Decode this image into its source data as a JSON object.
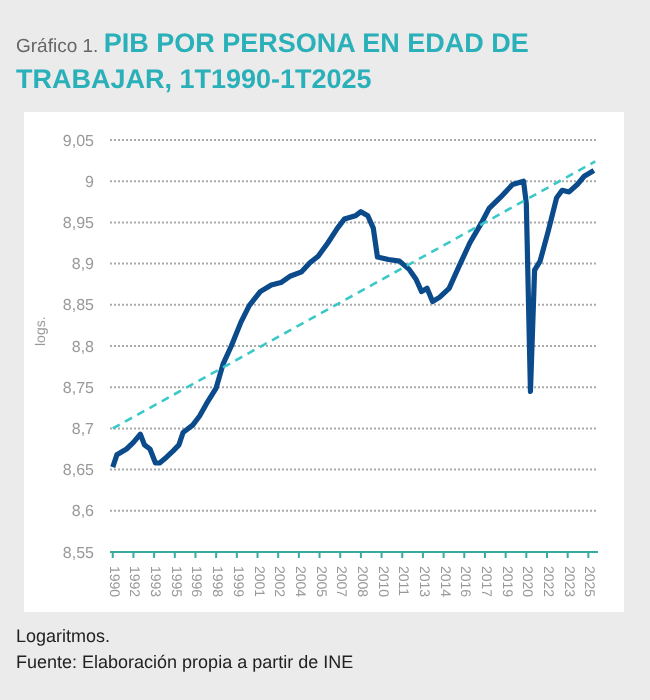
{
  "chart_data": {
    "type": "line",
    "subtitle": "Gráfico 1.",
    "title": "PIB POR PERSONA EN EDAD DE TRABAJAR, 1T1990-1T2025",
    "ylabel": "logs.",
    "annotations": [
      "Logaritmos.",
      "Fuente: Elaboración propia a partir de INE"
    ],
    "series": [
      {
        "color": "#0b4a8b",
        "line_style": "solid",
        "x": [
          1990.0,
          1990.3,
          1991.0,
          1991.5,
          1992.0,
          1992.3,
          1992.7,
          1993.1,
          1993.4,
          1993.9,
          1994.4,
          1994.8,
          1995.1,
          1995.8,
          1996.3,
          1996.8,
          1997.5,
          1998.0,
          1998.6,
          1999.3,
          1999.9,
          2000.7,
          2001.5,
          2002.2,
          2002.9,
          2003.7,
          2004.3,
          2004.9,
          2005.6,
          2006.3,
          2006.8,
          2007.6,
          2008.0,
          2008.5,
          2008.9,
          2009.2,
          2010.0,
          2010.8,
          2011.5,
          2012.0,
          2012.4,
          2012.8,
          2013.2,
          2013.7,
          2014.4,
          2015.1,
          2015.9,
          2016.8,
          2017.3,
          2018.1,
          2019.0,
          2019.8,
          2020.0,
          2020.3,
          2020.6,
          2021.0,
          2021.6,
          2022.2,
          2022.6,
          2023.1,
          2023.7,
          2024.2,
          2024.9
        ],
        "values": [
          8.653,
          8.668,
          8.675,
          8.683,
          8.693,
          8.68,
          8.675,
          8.658,
          8.658,
          8.665,
          8.673,
          8.68,
          8.695,
          8.704,
          8.715,
          8.73,
          8.749,
          8.778,
          8.8,
          8.829,
          8.849,
          8.866,
          8.874,
          8.877,
          8.885,
          8.89,
          8.901,
          8.909,
          8.925,
          8.943,
          8.954,
          8.958,
          8.963,
          8.958,
          8.943,
          8.908,
          8.905,
          8.903,
          8.893,
          8.881,
          8.866,
          8.87,
          8.854,
          8.859,
          8.87,
          8.896,
          8.925,
          8.951,
          8.967,
          8.98,
          8.996,
          9.0,
          8.973,
          8.745,
          8.892,
          8.903,
          8.94,
          8.98,
          8.989,
          8.987,
          8.996,
          9.006,
          9.013
        ]
      },
      {
        "type": "line",
        "color": "#3cc8c8",
        "line_style": "dashed",
        "x": [
          1990.0,
          2025.0
        ],
        "values": [
          8.7,
          9.024
        ]
      }
    ],
    "xlim": [
      1989.8,
      2025.2
    ],
    "xticks": [
      {
        "value": 1990,
        "label": "1990"
      },
      {
        "value": 1991.5,
        "label": "1992"
      },
      {
        "value": 1993,
        "label": "1993"
      },
      {
        "value": 1994.5,
        "label": "1995"
      },
      {
        "value": 1996,
        "label": "1996"
      },
      {
        "value": 1997.5,
        "label": "1998"
      },
      {
        "value": 1999,
        "label": "1999"
      },
      {
        "value": 2000.5,
        "label": "2001"
      },
      {
        "value": 2002,
        "label": "2002"
      },
      {
        "value": 2003.5,
        "label": "2004"
      },
      {
        "value": 2005,
        "label": "2005"
      },
      {
        "value": 2006.5,
        "label": "2007"
      },
      {
        "value": 2008,
        "label": "2008"
      },
      {
        "value": 2009.5,
        "label": "2010"
      },
      {
        "value": 2011,
        "label": "2011"
      },
      {
        "value": 2012.5,
        "label": "2013"
      },
      {
        "value": 2014,
        "label": "2014"
      },
      {
        "value": 2015.5,
        "label": "2016"
      },
      {
        "value": 2017,
        "label": "2017"
      },
      {
        "value": 2018.5,
        "label": "2019"
      },
      {
        "value": 2020,
        "label": "2020"
      },
      {
        "value": 2021.5,
        "label": "2022"
      },
      {
        "value": 2023,
        "label": "2023"
      },
      {
        "value": 2024.5,
        "label": "2025"
      }
    ],
    "ylim": [
      8.55,
      9.05
    ],
    "yticks": [
      {
        "value": 8.55,
        "label": "8,55"
      },
      {
        "value": 8.6,
        "label": "8,6"
      },
      {
        "value": 8.65,
        "label": "8,65"
      },
      {
        "value": 8.7,
        "label": "8,7"
      },
      {
        "value": 8.75,
        "label": "8,75"
      },
      {
        "value": 8.8,
        "label": "8,8"
      },
      {
        "value": 8.85,
        "label": "8,85"
      },
      {
        "value": 8.9,
        "label": "8,9"
      },
      {
        "value": 8.95,
        "label": "8,95"
      },
      {
        "value": 9,
        "label": "9"
      },
      {
        "value": 9.05,
        "label": "9,05"
      }
    ],
    "grid": "y",
    "legend": false,
    "marker": "none"
  }
}
